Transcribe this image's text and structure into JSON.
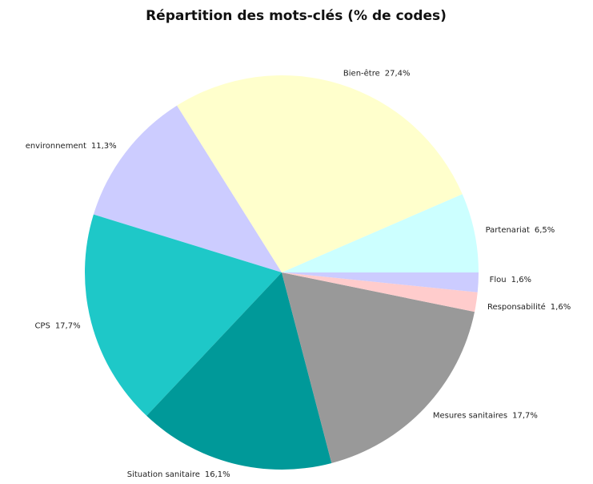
{
  "chart_data": {
    "type": "pie",
    "title": "Répartition des mots-clés (% de codes)",
    "categories": [
      "Partenariat",
      "Bien-être",
      "environnement",
      "CPS",
      "Situation sanitaire",
      "Mesures sanitaires",
      "Responsabilité",
      "Flou"
    ],
    "values": [
      6.5,
      27.4,
      11.3,
      17.7,
      16.1,
      17.7,
      1.6,
      1.6
    ],
    "value_labels": [
      "6,5%",
      "27,4%",
      "11,3%",
      "17,7%",
      "16,1%",
      "17,7%",
      "1,6%",
      "1,6%"
    ],
    "colors": [
      "#ccffff",
      "#ffffcc",
      "#ccccff",
      "#1ec8c8",
      "#009999",
      "#999999",
      "#ffcccc",
      "#ccccff"
    ]
  }
}
